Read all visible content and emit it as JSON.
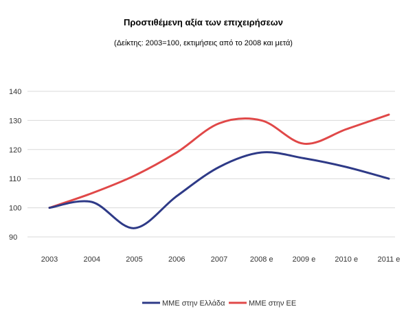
{
  "chart_data": {
    "type": "line",
    "title": "Προστιθέμενη αξία των επιχειρήσεων",
    "subtitle": "(Δείκτης: 2003=100, εκτιμήσεις από το 2008 και μετά)",
    "xlabel": "",
    "ylabel": "",
    "categories": [
      "2003",
      "2004",
      "2005",
      "2006",
      "2007",
      "2008 e",
      "2009 e",
      "2010 e",
      "2011 e"
    ],
    "ylim": [
      90,
      140
    ],
    "yticks": [
      90,
      100,
      110,
      120,
      130,
      140
    ],
    "grid": true,
    "legend_position": "bottom",
    "series": [
      {
        "name": "ΜΜΕ στην Ελλάδα",
        "color": "#2e3a87",
        "values": [
          100,
          102,
          93,
          104,
          114,
          119,
          117,
          114,
          110
        ]
      },
      {
        "name": "ΜΜΕ στην ΕΕ",
        "color": "#e04848",
        "values": [
          100,
          105,
          111,
          119,
          129,
          130,
          122,
          127,
          132
        ]
      }
    ]
  }
}
